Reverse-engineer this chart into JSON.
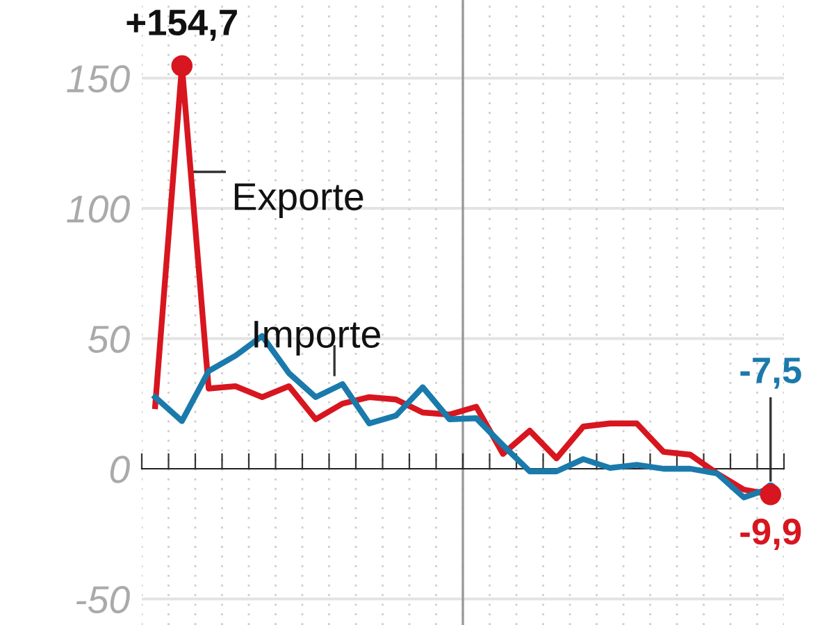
{
  "chart_data": {
    "type": "line",
    "categories": [
      null,
      null,
      null,
      null,
      null,
      null,
      null,
      null,
      null,
      null,
      null,
      null,
      null,
      null,
      null,
      null,
      null,
      null,
      null,
      null,
      null,
      null,
      null,
      null
    ],
    "series": [
      {
        "name": "Exporte",
        "color": "#d7161f",
        "values": [
          24,
          154.7,
          30.8,
          31.7,
          27.5,
          31.7,
          19,
          25,
          27.5,
          26.6,
          21.6,
          20.8,
          23.8,
          5.7,
          14.6,
          4,
          16.2,
          17.4,
          17.4,
          6.5,
          5.4,
          -1.8,
          -8,
          -9.9
        ],
        "value_labels": [
          null,
          "+154,7",
          null,
          null,
          null,
          null,
          null,
          null,
          null,
          null,
          null,
          null,
          null,
          null,
          null,
          null,
          null,
          null,
          null,
          null,
          null,
          null,
          null,
          "-9,9"
        ]
      },
      {
        "name": "Importe",
        "color": "#1a7aab",
        "values": [
          27.5,
          18.3,
          37.5,
          43.4,
          51,
          36.7,
          27.5,
          32.5,
          17.4,
          20.4,
          31.3,
          19,
          19.4,
          9,
          -1,
          -1,
          3.7,
          0.3,
          1.5,
          0,
          0,
          -1.8,
          -11,
          -7.5
        ],
        "value_labels": [
          null,
          null,
          null,
          null,
          null,
          null,
          null,
          null,
          null,
          null,
          null,
          null,
          null,
          null,
          null,
          null,
          null,
          null,
          null,
          null,
          null,
          null,
          null,
          "-7,5"
        ]
      }
    ],
    "ylim": [
      -60,
      180
    ],
    "yticks": [
      -50,
      0,
      50,
      100,
      150
    ],
    "grid": true,
    "legend": false
  }
}
